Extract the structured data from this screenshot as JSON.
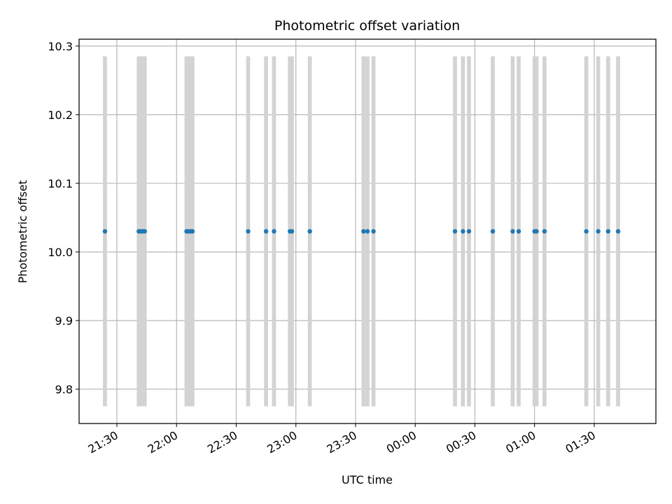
{
  "chart_data": {
    "type": "scatter",
    "title": "Photometric offset variation",
    "xlabel": "UTC time",
    "ylabel": "Photometric offset",
    "ylim": [
      9.75,
      10.31
    ],
    "xlim": [
      "21:11",
      "02:01"
    ],
    "grid": true,
    "y_ticks": [
      9.8,
      9.9,
      10.0,
      10.1,
      10.2,
      10.3
    ],
    "y_tick_labels": [
      "9.8",
      "9.9",
      "10.0",
      "10.1",
      "10.2",
      "10.3"
    ],
    "x_ticks": [
      "21:30",
      "22:00",
      "22:30",
      "23:00",
      "23:30",
      "00:00",
      "00:30",
      "01:00",
      "01:30"
    ],
    "x_tick_labels": [
      "21:30",
      "22:00",
      "22:30",
      "23:00",
      "23:30",
      "00:00",
      "00:30",
      "01:00",
      "01:30"
    ],
    "series": [
      {
        "color": "#1f77b4",
        "points": [
          {
            "x": "21:24",
            "y": 10.03
          },
          {
            "x": "21:41",
            "y": 10.03
          },
          {
            "x": "21:42",
            "y": 10.03
          },
          {
            "x": "21:43",
            "y": 10.03
          },
          {
            "x": "21:44",
            "y": 10.03
          },
          {
            "x": "22:05",
            "y": 10.03
          },
          {
            "x": "22:06",
            "y": 10.03
          },
          {
            "x": "22:07",
            "y": 10.03
          },
          {
            "x": "22:08",
            "y": 10.03
          },
          {
            "x": "22:36",
            "y": 10.03
          },
          {
            "x": "22:45",
            "y": 10.03
          },
          {
            "x": "22:49",
            "y": 10.03
          },
          {
            "x": "22:57",
            "y": 10.03
          },
          {
            "x": "22:58",
            "y": 10.03
          },
          {
            "x": "23:07",
            "y": 10.03
          },
          {
            "x": "23:34",
            "y": 10.03
          },
          {
            "x": "23:36",
            "y": 10.03
          },
          {
            "x": "23:39",
            "y": 10.03
          },
          {
            "x": "00:20",
            "y": 10.03
          },
          {
            "x": "00:24",
            "y": 10.03
          },
          {
            "x": "00:27",
            "y": 10.03
          },
          {
            "x": "00:39",
            "y": 10.03
          },
          {
            "x": "00:49",
            "y": 10.03
          },
          {
            "x": "00:52",
            "y": 10.03
          },
          {
            "x": "01:00",
            "y": 10.03
          },
          {
            "x": "01:01",
            "y": 10.03
          },
          {
            "x": "01:05",
            "y": 10.03
          },
          {
            "x": "01:26",
            "y": 10.03
          },
          {
            "x": "01:32",
            "y": 10.03
          },
          {
            "x": "01:37",
            "y": 10.03
          },
          {
            "x": "01:42",
            "y": 10.03
          }
        ]
      }
    ],
    "bands": {
      "color": "#d3d3d3",
      "y_range": [
        9.775,
        10.285
      ],
      "intervals": [
        [
          "21:23",
          "21:25"
        ],
        [
          "21:40",
          "21:45"
        ],
        [
          "22:04",
          "22:09"
        ],
        [
          "22:35",
          "22:37"
        ],
        [
          "22:44",
          "22:46"
        ],
        [
          "22:48",
          "22:50"
        ],
        [
          "22:56",
          "22:59"
        ],
        [
          "23:06",
          "23:08"
        ],
        [
          "23:33",
          "23:35"
        ],
        [
          "23:35",
          "23:37"
        ],
        [
          "23:38",
          "23:40"
        ],
        [
          "00:19",
          "00:21"
        ],
        [
          "00:23",
          "00:25"
        ],
        [
          "00:26",
          "00:28"
        ],
        [
          "00:38",
          "00:40"
        ],
        [
          "00:48",
          "00:50"
        ],
        [
          "00:51",
          "00:53"
        ],
        [
          "00:59",
          "01:02"
        ],
        [
          "01:04",
          "01:06"
        ],
        [
          "01:25",
          "01:27"
        ],
        [
          "01:31",
          "01:33"
        ],
        [
          "01:36",
          "01:38"
        ],
        [
          "01:41",
          "01:43"
        ]
      ]
    }
  }
}
